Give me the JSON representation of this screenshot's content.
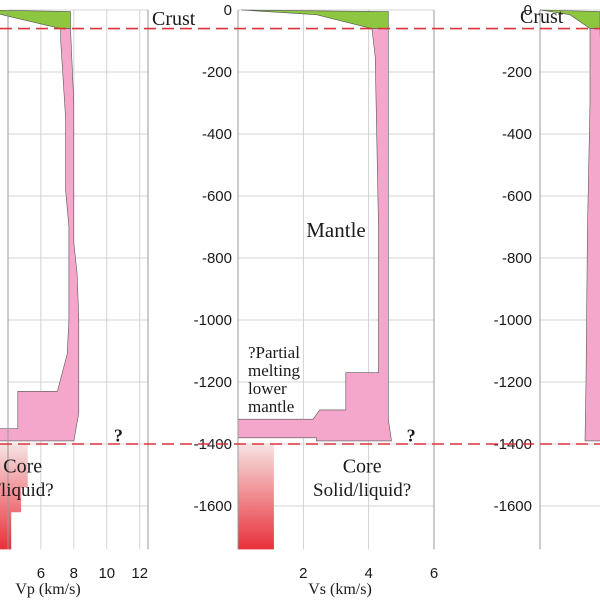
{
  "colors": {
    "crust": "#8dc63f",
    "mantle": "#f4a7cb",
    "core_top": "#f7e3e3",
    "core_bottom": "#e8303a",
    "boundary": "#d9333b",
    "grid": "#c8c8c8",
    "outline": "#555555"
  },
  "labels": {
    "crust": "Crust",
    "mantle": "Mantle",
    "mantle_cut": "ntle",
    "core": "Core",
    "core_state": "Solid/liquid?",
    "question": "?",
    "partial_melting": [
      "?Partial",
      "melting",
      "lower",
      "mantle"
    ]
  },
  "chart_data": [
    {
      "type": "area",
      "panel": "Vp",
      "xlabel": "Vp (km/s)",
      "ylabel": "",
      "xlim": [
        0,
        12.5
      ],
      "ylim": [
        -1740,
        0
      ],
      "xticks": [
        6,
        8,
        10,
        12
      ],
      "yticks": [
        0,
        -200,
        -400,
        -600,
        -800,
        -1000,
        -1200,
        -1400,
        -1600
      ],
      "y_tick_labels_shown": false,
      "grid": true,
      "boundaries": [
        -60,
        -1400
      ],
      "regions": {
        "crust": [
          [
            2.5,
            0
          ],
          [
            7.8,
            -5
          ],
          [
            7.8,
            -60
          ],
          [
            7.2,
            -60
          ],
          [
            4.0,
            -20
          ]
        ],
        "mantle": [
          [
            7.2,
            -60
          ],
          [
            7.8,
            -60
          ],
          [
            8.0,
            -300
          ],
          [
            8.0,
            -750
          ],
          [
            8.2,
            -850
          ],
          [
            8.3,
            -1000
          ],
          [
            8.3,
            -1300
          ],
          [
            8.0,
            -1390
          ],
          [
            3.3,
            -1390
          ],
          [
            3.3,
            -1350
          ],
          [
            4.6,
            -1350
          ],
          [
            4.6,
            -1230
          ],
          [
            7.0,
            -1230
          ],
          [
            7.6,
            -1110
          ],
          [
            7.7,
            -1000
          ],
          [
            7.7,
            -700
          ],
          [
            7.5,
            -580
          ],
          [
            7.5,
            -350
          ],
          [
            7.2,
            -100
          ]
        ],
        "core": [
          [
            0,
            -1400
          ],
          [
            5.2,
            -1400
          ],
          [
            5.2,
            -1540
          ],
          [
            4.8,
            -1540
          ],
          [
            4.8,
            -1620
          ],
          [
            4.2,
            -1620
          ],
          [
            4.2,
            -1740
          ],
          [
            0,
            -1740
          ]
        ]
      },
      "annotations": [
        {
          "text": "Core",
          "x": 4.9,
          "y": -1470
        },
        {
          "text": "Solid/liquid?",
          "x": 3.8,
          "y": -1545
        },
        {
          "text": "ntle",
          "x": 0.5,
          "y": -700
        },
        {
          "text": "?",
          "x": 10.7,
          "y": -1370
        }
      ]
    },
    {
      "type": "area",
      "panel": "Vs",
      "xlabel": "Vs (km/s)",
      "ylabel": "",
      "xlim": [
        0,
        6
      ],
      "ylim": [
        -1740,
        0
      ],
      "xticks": [
        2,
        4,
        6
      ],
      "yticks": [
        0,
        -200,
        -400,
        -600,
        -800,
        -1000,
        -1200,
        -1400,
        -1600
      ],
      "y_tick_labels_shown": true,
      "grid": true,
      "boundaries": [
        -60,
        -1400
      ],
      "regions": {
        "crust": [
          [
            0.1,
            0
          ],
          [
            4.6,
            -5
          ],
          [
            4.6,
            -60
          ],
          [
            4.1,
            -60
          ],
          [
            2.4,
            -15
          ]
        ],
        "mantle": [
          [
            4.1,
            -60
          ],
          [
            4.6,
            -60
          ],
          [
            4.6,
            -1320
          ],
          [
            4.7,
            -1390
          ],
          [
            2.4,
            -1390
          ],
          [
            2.4,
            -1380
          ],
          [
            0,
            -1380
          ],
          [
            0,
            -1320
          ],
          [
            2.3,
            -1320
          ],
          [
            2.5,
            -1290
          ],
          [
            3.3,
            -1290
          ],
          [
            3.3,
            -1170
          ],
          [
            4.3,
            -1170
          ],
          [
            4.3,
            -700
          ],
          [
            4.2,
            -150
          ]
        ],
        "core": [
          [
            0,
            -1400
          ],
          [
            1.1,
            -1400
          ],
          [
            1.1,
            -1740
          ],
          [
            0,
            -1740
          ]
        ]
      },
      "annotations": [
        {
          "text": "Mantle",
          "x": 3.0,
          "y": -710
        },
        {
          "text": "Core",
          "x": 3.8,
          "y": -1470
        },
        {
          "text": "Solid/liquid?",
          "x": 3.8,
          "y": -1545
        },
        {
          "text": "?",
          "x": 5.3,
          "y": -1370
        }
      ]
    },
    {
      "type": "area",
      "panel": "third",
      "xlabel": "",
      "ylabel": "",
      "xlim": [
        0,
        2.0
      ],
      "ylim": [
        -1740,
        0
      ],
      "xticks": [],
      "yticks": [
        0,
        -200,
        -400,
        -600,
        -800,
        -1000,
        -1200,
        -1400,
        -1600
      ],
      "y_tick_labels_shown": true,
      "grid": true,
      "boundaries": [
        -60,
        -1400
      ],
      "regions": {
        "crust": [
          [
            0,
            0
          ],
          [
            1.2,
            -5
          ],
          [
            1.2,
            -60
          ],
          [
            1.0,
            -60
          ],
          [
            0.6,
            -15
          ]
        ],
        "mantle": [
          [
            1.0,
            -60
          ],
          [
            1.2,
            -60
          ],
          [
            1.25,
            -350
          ],
          [
            1.35,
            -700
          ],
          [
            1.35,
            -1100
          ],
          [
            1.4,
            -1200
          ],
          [
            1.4,
            -1390
          ],
          [
            0.9,
            -1390
          ],
          [
            0.92,
            -1200
          ],
          [
            0.95,
            -700
          ],
          [
            1.0,
            -300
          ]
        ],
        "core": [
          [
            1.8,
            -1400
          ],
          [
            2.0,
            -1400
          ],
          [
            2.0,
            -1740
          ],
          [
            1.8,
            -1740
          ]
        ]
      },
      "annotations": [
        {
          "text": "Crust",
          "x": -0.4,
          "y": -20
        }
      ]
    }
  ]
}
